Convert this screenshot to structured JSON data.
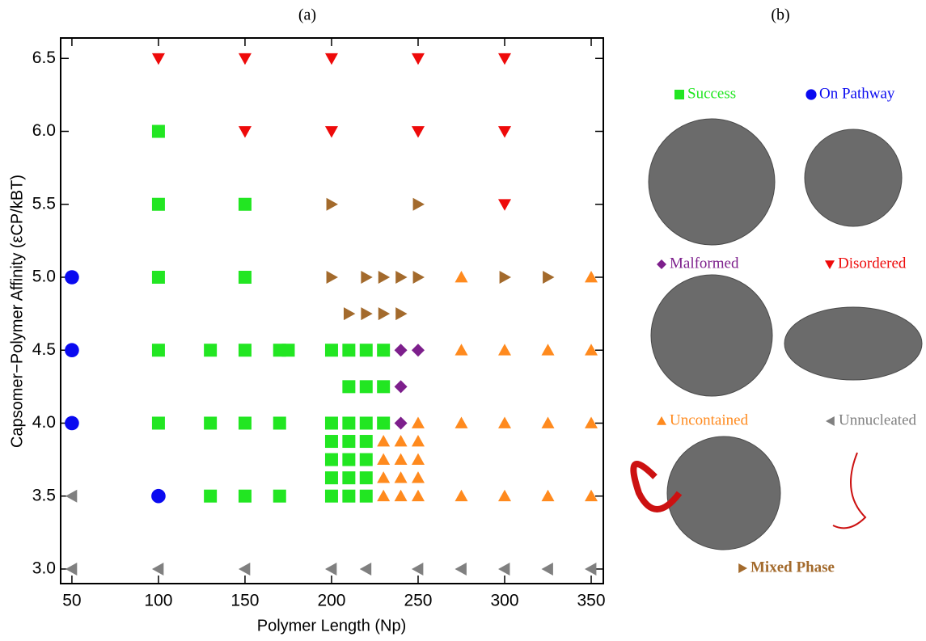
{
  "panel_labels": [
    "(a)",
    "(b)"
  ],
  "chart_data": {
    "type": "scatter",
    "x_label": "Polymer Length (Np)",
    "y_label": "Capsomer−Polymer Affinity (εCP/kBT)",
    "xlim": [
      43.5,
      357
    ],
    "ylim": [
      2.9,
      6.64
    ],
    "xticks": [
      50,
      100,
      150,
      200,
      250,
      300,
      350
    ],
    "yticks": [
      {
        "value": 3,
        "label": "3.0"
      },
      3.5,
      {
        "value": 4,
        "label": "4.0"
      },
      4.5,
      {
        "value": 5,
        "label": "5.0"
      },
      5.5,
      {
        "value": 6,
        "label": "6.0"
      },
      6.5
    ],
    "series": [
      {
        "name": "Success",
        "color": "#22e622",
        "marker": "square",
        "x": [
          100,
          100,
          150,
          100,
          150,
          100,
          130,
          150,
          170,
          175,
          200,
          210,
          220,
          230,
          210,
          220,
          230,
          100,
          130,
          150,
          170,
          200,
          210,
          220,
          230,
          200,
          210,
          220,
          200,
          210,
          220,
          200,
          210,
          220,
          130,
          150,
          170,
          200,
          210,
          220
        ],
        "values": [
          6,
          5.5,
          5.5,
          5,
          5,
          4.5,
          4.5,
          4.5,
          4.5,
          4.5,
          4.5,
          4.5,
          4.5,
          4.5,
          4.25,
          4.25,
          4.25,
          4,
          4,
          4,
          4,
          4,
          4,
          4,
          4,
          3.875,
          3.875,
          3.875,
          3.75,
          3.75,
          3.75,
          3.625,
          3.625,
          3.625,
          3.5,
          3.5,
          3.5,
          3.5,
          3.5,
          3.5
        ]
      },
      {
        "name": "On Pathway",
        "color": "#0a0af0",
        "marker": "circle",
        "x": [
          50,
          50,
          50,
          100
        ],
        "values": [
          5,
          4.5,
          4,
          3.5
        ]
      },
      {
        "name": "Malformed",
        "color": "#7d1f8c",
        "marker": "diamond",
        "x": [
          240,
          250,
          240,
          240
        ],
        "values": [
          4.5,
          4.5,
          4.25,
          4
        ]
      },
      {
        "name": "Disordered",
        "color": "#ee0a0a",
        "marker": "tri-down",
        "x": [
          100,
          150,
          200,
          250,
          300,
          150,
          200,
          250,
          300,
          300
        ],
        "values": [
          6.5,
          6.5,
          6.5,
          6.5,
          6.5,
          6,
          6,
          6,
          6,
          5.5
        ]
      },
      {
        "name": "Uncontained",
        "color": "#ff8a1e",
        "marker": "tri-up",
        "x": [
          275,
          350,
          275,
          300,
          325,
          350,
          250,
          275,
          300,
          325,
          350,
          230,
          240,
          250,
          230,
          240,
          250,
          230,
          240,
          250,
          230,
          240,
          250,
          275,
          300,
          325,
          350
        ],
        "values": [
          5,
          5,
          4.5,
          4.5,
          4.5,
          4.5,
          4,
          4,
          4,
          4,
          4,
          3.875,
          3.875,
          3.875,
          3.75,
          3.75,
          3.75,
          3.625,
          3.625,
          3.625,
          3.5,
          3.5,
          3.5,
          3.5,
          3.5,
          3.5,
          3.5
        ]
      },
      {
        "name": "Unnucleated",
        "color": "#808080",
        "marker": "tri-left",
        "x": [
          50,
          50,
          100,
          150,
          200,
          220,
          250,
          275,
          300,
          325,
          350
        ],
        "values": [
          3.5,
          3,
          3,
          3,
          3,
          3,
          3,
          3,
          3,
          3,
          3
        ]
      },
      {
        "name": "Mixed Phase",
        "color": "#a36a2c",
        "marker": "tri-right",
        "x": [
          200,
          250,
          200,
          220,
          230,
          240,
          250,
          300,
          325,
          210,
          220,
          230,
          240
        ],
        "values": [
          5.5,
          5.5,
          5,
          5,
          5,
          5,
          5,
          5,
          5,
          4.75,
          4.75,
          4.75,
          4.75
        ]
      }
    ]
  }
}
